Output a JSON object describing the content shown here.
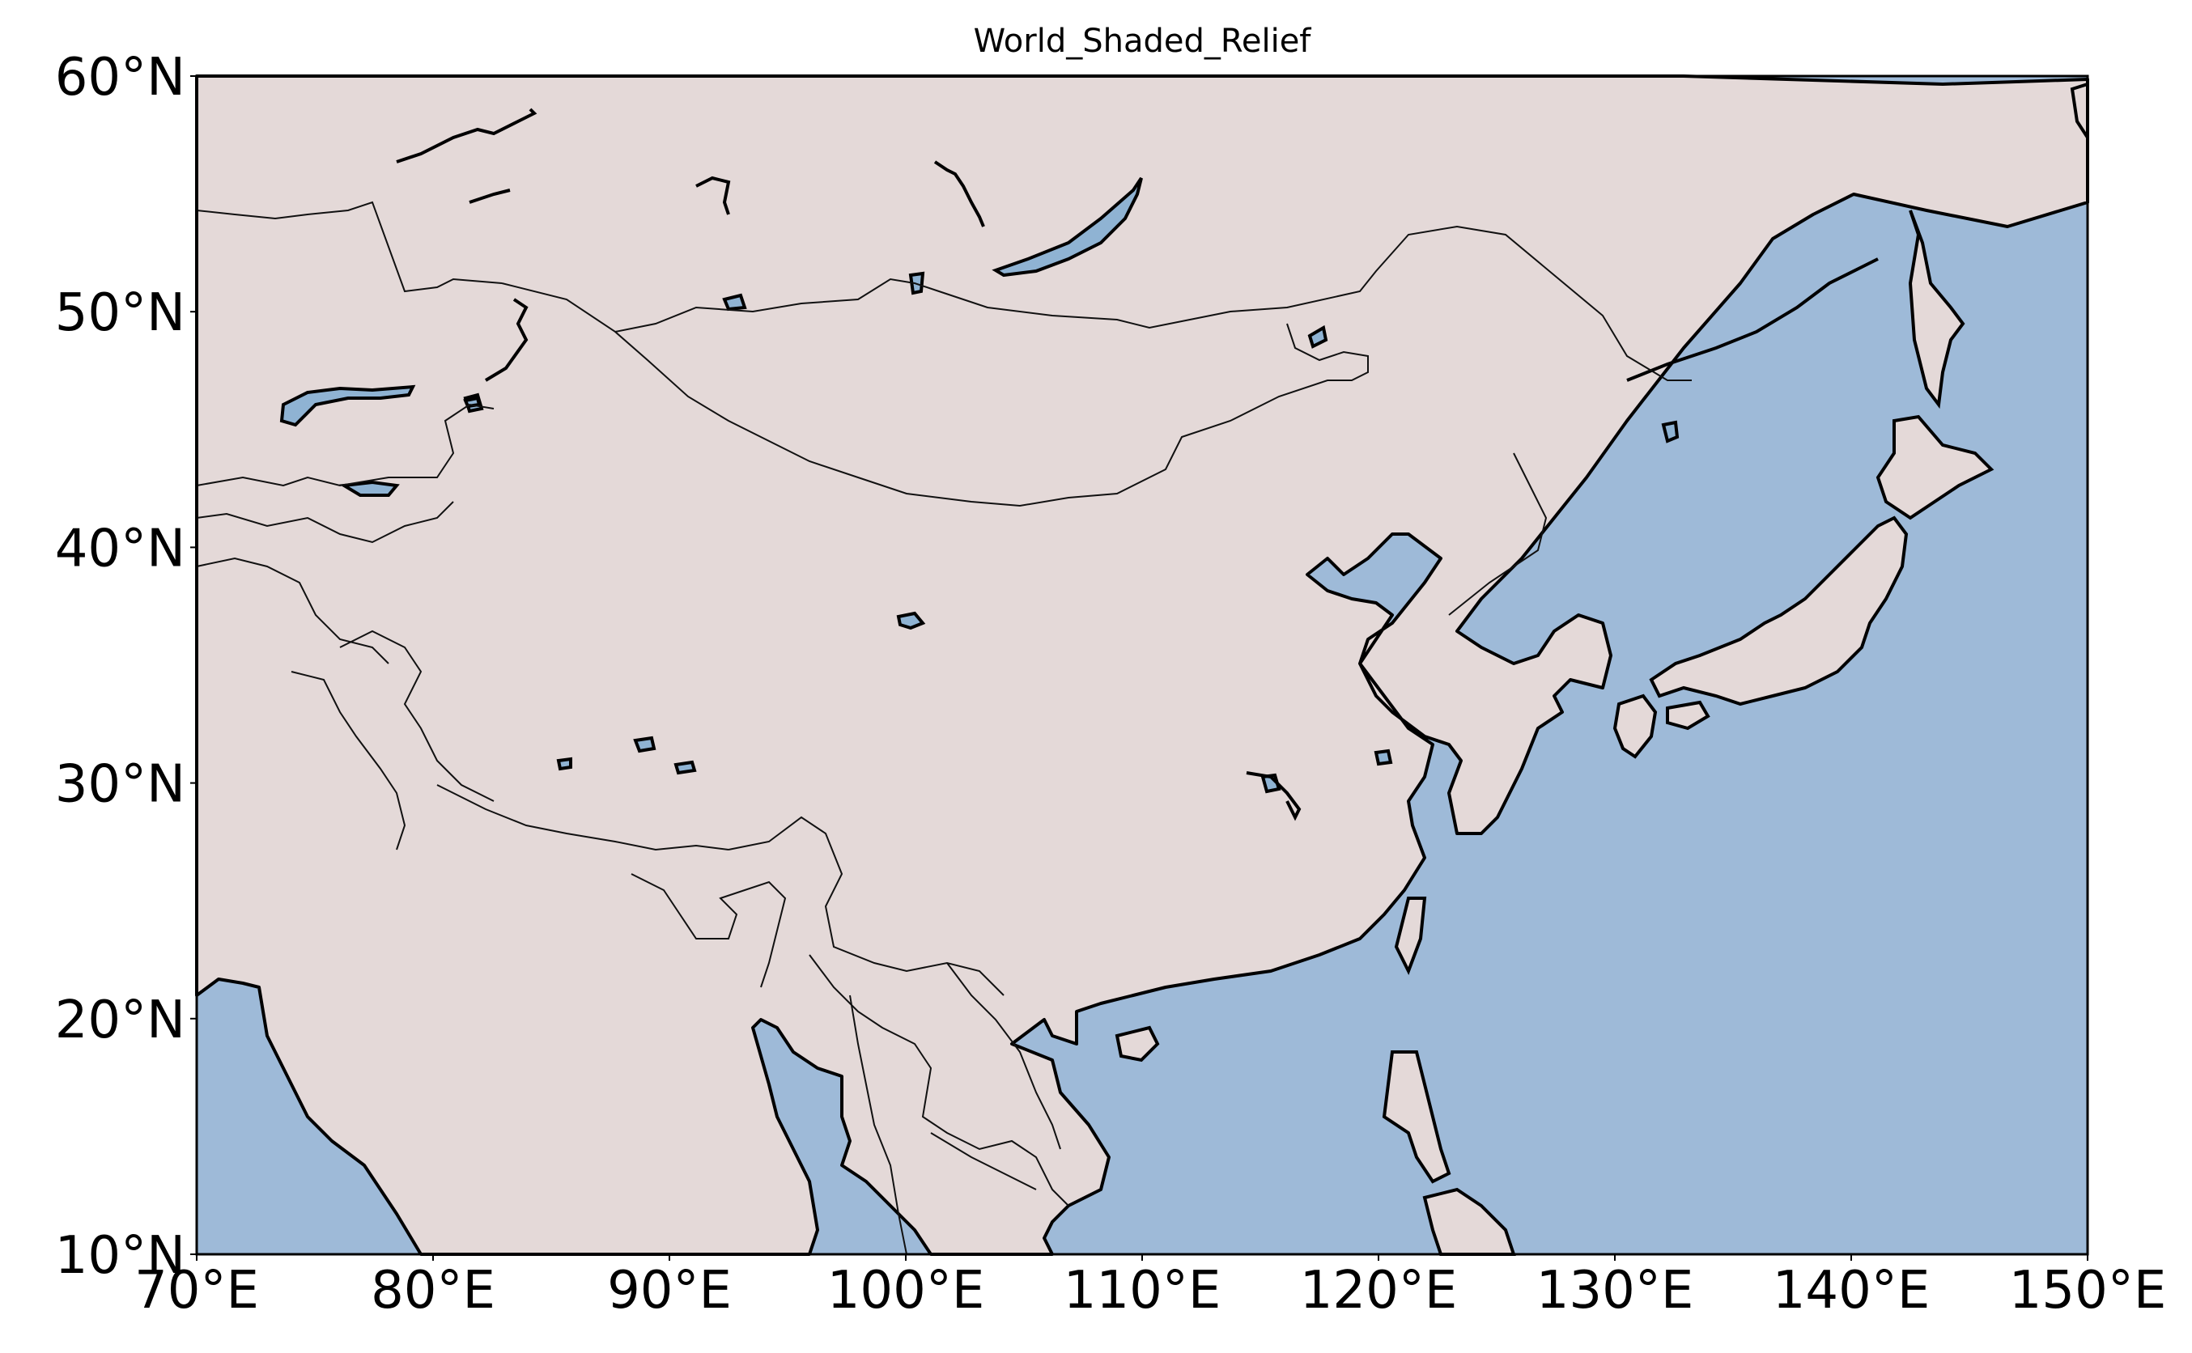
{
  "map": {
    "title": "World_Shaded_Relief",
    "extent": {
      "lon": [
        70,
        150
      ],
      "lat": [
        10,
        60
      ]
    },
    "colors": {
      "land": "#e4d9d8",
      "ocean": "#9ebad8",
      "coastline": "#000000",
      "border": "#111111",
      "lake": "#8fb3d3"
    },
    "x_ticks": [
      {
        "value": 70,
        "label": "70°E"
      },
      {
        "value": 80,
        "label": "80°E"
      },
      {
        "value": 90,
        "label": "90°E"
      },
      {
        "value": 100,
        "label": "100°E"
      },
      {
        "value": 110,
        "label": "110°E"
      },
      {
        "value": 120,
        "label": "120°E"
      },
      {
        "value": 130,
        "label": "130°E"
      },
      {
        "value": 140,
        "label": "140°E"
      },
      {
        "value": 150,
        "label": "150°E"
      }
    ],
    "y_ticks": [
      {
        "value": 60,
        "label": "60°N"
      },
      {
        "value": 50,
        "label": "50°N"
      },
      {
        "value": 40,
        "label": "40°N"
      },
      {
        "value": 30,
        "label": "30°N"
      },
      {
        "value": 20,
        "label": "20°N"
      },
      {
        "value": 10,
        "label": "10°N"
      }
    ]
  }
}
